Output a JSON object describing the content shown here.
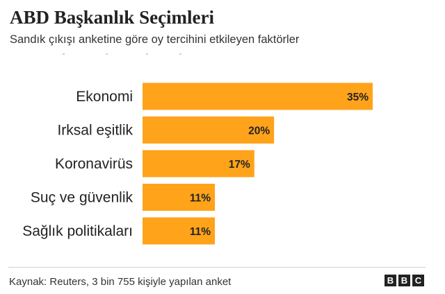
{
  "title": "ABD Başkanlık Seçimleri",
  "subtitle": "Sandık çıkışı anketine göre oy tercihini etkileyen faktörler",
  "source": "Kaynak: Reuters, 3 bin 755 kişiyle yapılan anket",
  "logo": {
    "letters": [
      "B",
      "B",
      "C"
    ]
  },
  "colors": {
    "bar": "#FFA31A",
    "text": "#222222"
  },
  "chart_data": {
    "type": "bar",
    "orientation": "horizontal",
    "title": "ABD Başkanlık Seçimleri",
    "subtitle": "Sandık çıkışı anketine göre oy tercihini etkileyen faktörler",
    "categories": [
      "Ekonomi",
      "Irksal eşitlik",
      "Koronavirüs",
      "Suç ve güvenlik",
      "Sağlık politikaları"
    ],
    "values": [
      35,
      20,
      17,
      11,
      11
    ],
    "value_labels": [
      "35%",
      "20%",
      "17%",
      "11%",
      "11%"
    ],
    "unit": "%",
    "xlim": [
      0,
      35
    ],
    "grid": false,
    "legend": "none",
    "data_labels": "inside-end"
  }
}
